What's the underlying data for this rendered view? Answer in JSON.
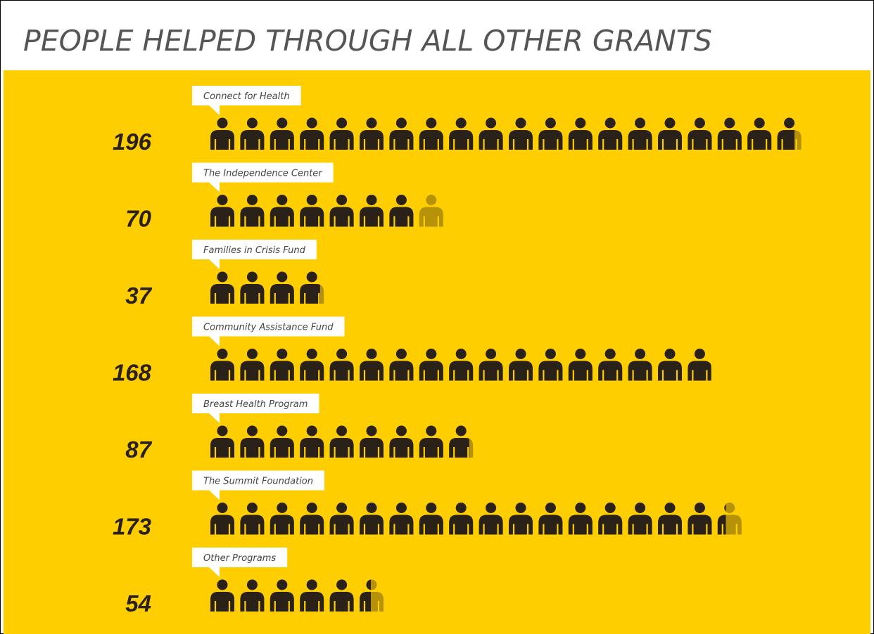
{
  "chart_data": {
    "type": "pictograph",
    "title": "PEOPLE HELPED THROUGH ALL OTHER GRANTS",
    "categories": [
      "Connect for Health",
      "The Independence Center",
      "Families in Crisis Fund",
      "Community Assistance Fund",
      "Breast Health Program",
      "The Summit Foundation",
      "Other Programs"
    ],
    "values": [
      196,
      70,
      37,
      168,
      87,
      173,
      54
    ],
    "color": "#2a2118",
    "background": "#ffce00"
  }
}
